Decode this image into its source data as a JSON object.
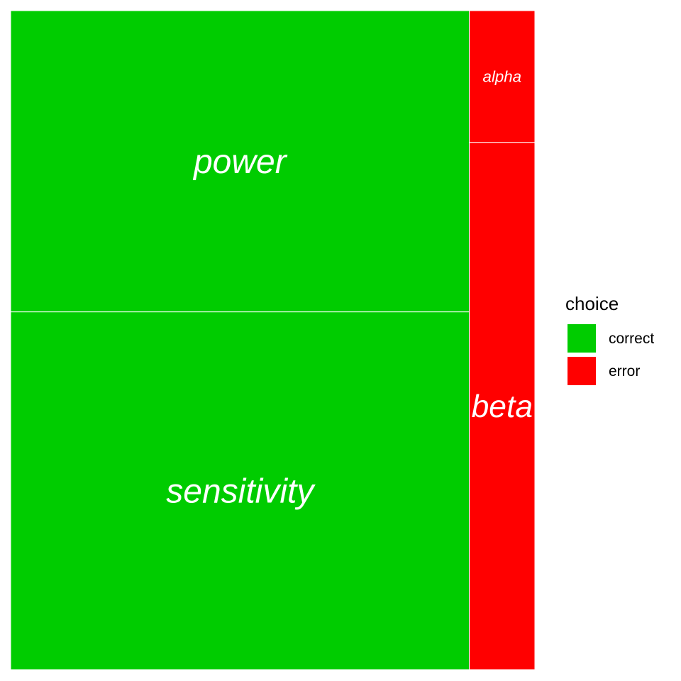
{
  "chart_data": {
    "type": "treemap",
    "title": "",
    "tiles": [
      {
        "label": "power",
        "group": "correct",
        "value": 0.8
      },
      {
        "label": "sensitivity",
        "group": "correct",
        "value": 0.95
      },
      {
        "label": "alpha",
        "group": "error",
        "value": 0.05
      },
      {
        "label": "beta",
        "group": "error",
        "value": 0.2
      }
    ],
    "legend": {
      "title": "choice",
      "position": "right",
      "entries": [
        {
          "name": "correct",
          "color": "#00CC00"
        },
        {
          "name": "error",
          "color": "#FF0000"
        }
      ]
    }
  }
}
